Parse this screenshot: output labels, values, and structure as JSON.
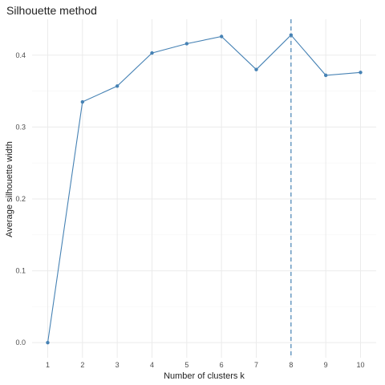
{
  "chart_data": {
    "type": "line",
    "title": "Silhouette method",
    "xlabel": "Number of clusters k",
    "ylabel": "Average silhouette width",
    "categories": [
      "1",
      "2",
      "3",
      "4",
      "5",
      "6",
      "7",
      "8",
      "9",
      "10"
    ],
    "x": [
      1,
      2,
      3,
      4,
      5,
      6,
      7,
      8,
      9,
      10
    ],
    "values": [
      0.0,
      0.335,
      0.357,
      0.403,
      0.416,
      0.426,
      0.38,
      0.428,
      0.372,
      0.376
    ],
    "ylim": [
      -0.021,
      0.45
    ],
    "xlim": [
      0.55,
      10.45
    ],
    "yticks": [
      0.0,
      0.1,
      0.2,
      0.3,
      0.4
    ],
    "ytick_labels": [
      "0.0",
      "0.1",
      "0.2",
      "0.3",
      "0.4"
    ],
    "optimal_k": 8,
    "grid": true,
    "legend": "none",
    "colors": {
      "line": "#4682b4",
      "point": "#4682b4",
      "vline": "#4682b4",
      "grid": "#ebebeb"
    }
  }
}
